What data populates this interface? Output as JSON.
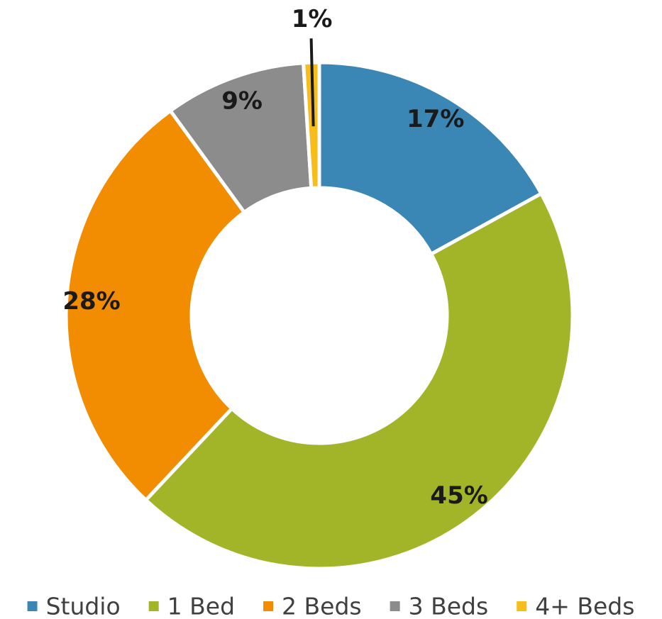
{
  "chart_data": {
    "type": "pie",
    "donut": true,
    "title": "",
    "categories": [
      "Studio",
      "1 Bed",
      "2 Beds",
      "3 Beds",
      "4+ Beds"
    ],
    "values": [
      17,
      45,
      28,
      9,
      1
    ],
    "labels": [
      "17%",
      "45%",
      "28%",
      "9%",
      "1%"
    ],
    "colors": [
      "#3a87b5",
      "#a2b529",
      "#f28c00",
      "#8c8c8c",
      "#f7bd1a"
    ],
    "legend": {
      "position": "bottom",
      "entries": [
        "Studio",
        "1 Bed",
        "2 Beds",
        "3 Beds",
        "4+ Beds"
      ]
    },
    "start_angle_deg": 0,
    "direction": "clockwise"
  }
}
